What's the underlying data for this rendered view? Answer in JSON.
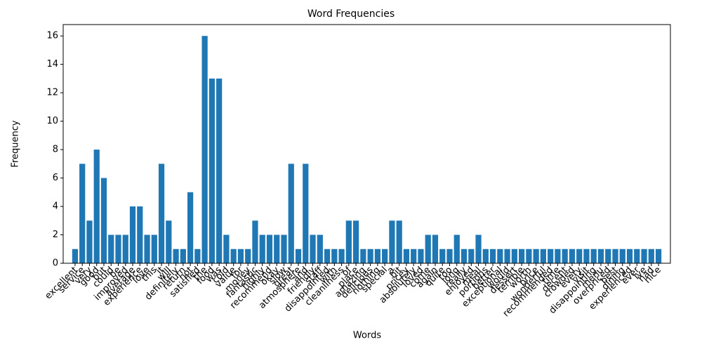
{
  "chart_data": {
    "type": "bar",
    "title": "Word Frequencies",
    "x_label": "Words",
    "y_label": "Frequency",
    "color": "#1f77b4",
    "categories": [
      "excellent",
      "service",
      "very",
      "good",
      "but",
      "could",
      "be",
      "improved",
      "average",
      "experience",
      "love",
      "this",
      "it",
      "will",
      "definitely",
      "return",
      "not",
      "satisfied",
      "the",
      "food",
      "was",
      "cold",
      "value",
      "for",
      "money",
      "fantastic",
      "highly",
      "recommend",
      "okay",
      "slow",
      "great",
      "atmosphere",
      "and",
      "friendly",
      "staff",
      "disappointed",
      "with",
      "cleanliness",
      "of",
      "place",
      "amazing",
      "delicious",
      "nothing",
      "special",
      "a",
      "bit",
      "pricey",
      "absolutely",
      "loved",
      "come",
      "again",
      "quite",
      "too",
      "long",
      "really",
      "enjoyed",
      "meal",
      "portions",
      "better",
      "exceptional",
      "would",
      "dessert",
      "terrible",
      "worth",
      "price",
      "wonderful",
      "recommended",
      "time",
      "decent",
      "crowded",
      "every",
      "visit",
      "disappointing",
      "menu",
      "overpriced",
      "best",
      "dining",
      "experienced",
      "ever",
      "ive",
      "had",
      "nice"
    ],
    "values": [
      1,
      7,
      3,
      8,
      6,
      2,
      2,
      2,
      4,
      4,
      2,
      2,
      7,
      3,
      1,
      1,
      5,
      1,
      16,
      13,
      13,
      2,
      1,
      1,
      1,
      3,
      2,
      2,
      2,
      2,
      7,
      1,
      7,
      2,
      2,
      1,
      1,
      1,
      3,
      3,
      1,
      1,
      1,
      1,
      3,
      3,
      1,
      1,
      1,
      2,
      2,
      1,
      1,
      2,
      1,
      1,
      2,
      1,
      1,
      1,
      1,
      1,
      1,
      1,
      1,
      1,
      1,
      1,
      1,
      1,
      1,
      1,
      1,
      1,
      1,
      1,
      1,
      1,
      1,
      1,
      1,
      1
    ],
    "ylim": [
      0,
      16.8
    ],
    "yticks": [
      0,
      2,
      4,
      6,
      8,
      10,
      12,
      14,
      16
    ]
  }
}
